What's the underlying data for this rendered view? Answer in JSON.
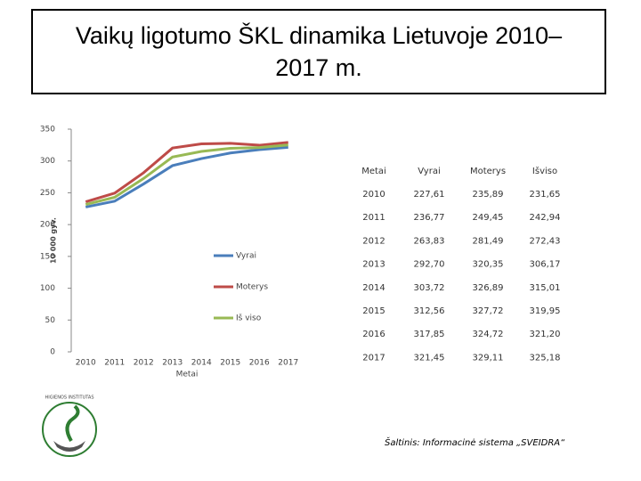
{
  "title": "Vaikų ligotumo ŠKL dinamika Lietuvoje 2010–2017 m.",
  "chart_data": {
    "type": "line",
    "x_label": "Metai",
    "y_label": "10 000 gyv.",
    "categories": [
      "2010",
      "2011",
      "2012",
      "2013",
      "2014",
      "2015",
      "2016",
      "2017"
    ],
    "series": [
      {
        "name": "Vyrai",
        "color": "#4a7ebb",
        "values": [
          227.61,
          236.77,
          263.83,
          292.7,
          303.72,
          312.56,
          317.85,
          321.45
        ]
      },
      {
        "name": "Moterys",
        "color": "#be4b48",
        "values": [
          235.89,
          249.45,
          281.49,
          320.35,
          326.89,
          327.72,
          324.72,
          329.11
        ]
      },
      {
        "name": "Iš viso",
        "color": "#98b954",
        "values": [
          231.65,
          242.94,
          272.43,
          306.17,
          315.01,
          319.95,
          321.2,
          325.18
        ]
      }
    ],
    "ylim": [
      0,
      350
    ],
    "yticks": [
      0,
      50,
      100,
      150,
      200,
      250,
      300,
      350
    ],
    "grid": false,
    "legend": "center"
  },
  "table": {
    "header": [
      "Metai",
      "Vyrai",
      "Moterys",
      "Išviso"
    ],
    "rows": [
      [
        "2010",
        "227,61",
        "235,89",
        "231,65"
      ],
      [
        "2011",
        "236,77",
        "249,45",
        "242,94"
      ],
      [
        "2012",
        "263,83",
        "281,49",
        "272,43"
      ],
      [
        "2013",
        "292,70",
        "320,35",
        "306,17"
      ],
      [
        "2014",
        "303,72",
        "326,89",
        "315,01"
      ],
      [
        "2015",
        "312,56",
        "327,72",
        "319,95"
      ],
      [
        "2016",
        "317,85",
        "324,72",
        "321,20"
      ],
      [
        "2017",
        "321,45",
        "329,11",
        "325,18"
      ]
    ]
  },
  "logo": "HIGIENOS INSTITUTAS",
  "source": "Šaltinis: Informacinė sistema „SVEIDRA“"
}
